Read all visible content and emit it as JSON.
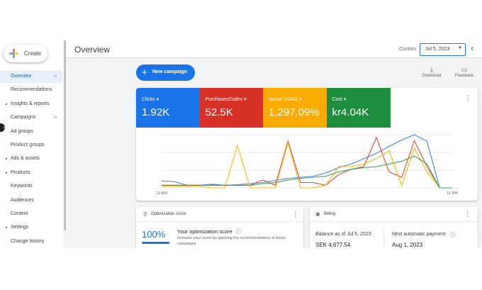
{
  "sidebar": {
    "create": "Create",
    "nav": [
      "Overview",
      "Recommendations",
      "Insights & reports",
      "Campaigns",
      "Ad groups",
      "Product groups",
      "Ads & assets",
      "Products",
      "Keywords",
      "Audiences",
      "Content",
      "Settings",
      "Change history"
    ]
  },
  "header": {
    "title": "Overview",
    "custom": "Custom",
    "date": "Jul 5, 2023"
  },
  "actions": {
    "new_campaign": "New campaign",
    "download": "Download",
    "feedback": "Feedback"
  },
  "metrics": [
    {
      "label": "Clicks",
      "value": "1.92K"
    },
    {
      "label": "Purchases/Sales",
      "value": "52.5K"
    },
    {
      "label": "Actual ROAS",
      "value": "1,297.09%"
    },
    {
      "label": "Cost",
      "value": "kr4.04K"
    }
  ],
  "chart_data": {
    "type": "line",
    "categories": [
      "12 AM",
      null,
      null,
      null,
      null,
      null,
      null,
      null,
      null,
      null,
      null,
      null,
      null,
      null,
      null,
      null,
      null,
      null,
      null,
      null,
      null,
      null,
      null,
      "11 PM"
    ],
    "series": [
      {
        "name": "Clicks",
        "color": "#4285f4",
        "values": [
          13,
          12,
          5,
          5,
          7,
          5,
          6,
          8,
          10,
          14,
          18,
          20,
          22,
          28,
          38,
          45,
          55,
          65,
          78,
          90,
          100,
          88,
          0,
          0
        ]
      },
      {
        "name": "Purchases/Sales",
        "color": "#ea4335",
        "values": [
          5,
          5,
          5,
          5,
          5,
          5,
          5,
          5,
          15,
          5,
          88,
          10,
          10,
          5,
          25,
          35,
          40,
          95,
          30,
          20,
          89,
          40,
          0,
          0
        ]
      },
      {
        "name": "Actual ROAS",
        "color": "#fbbc04",
        "values": [
          3,
          3,
          3,
          3,
          0,
          0,
          80,
          0,
          0,
          0,
          85,
          0,
          0,
          5,
          40,
          40,
          45,
          55,
          70,
          5,
          75,
          30,
          0,
          0
        ]
      },
      {
        "name": "Cost",
        "color": "#34a853",
        "values": [
          5,
          5,
          5,
          5,
          5,
          5,
          5,
          5,
          8,
          10,
          15,
          18,
          20,
          22,
          30,
          35,
          38,
          40,
          45,
          50,
          60,
          45,
          0,
          0
        ]
      }
    ],
    "ylim": [
      0,
      100
    ],
    "yticks": [
      0,
      33.3,
      66.7,
      100
    ],
    "grid": true
  },
  "optimization": {
    "title": "Optimization score",
    "score": "100%",
    "heading": "Your optimization score",
    "text": "Increase your score by applying the recommendations in these campaigns"
  },
  "billing": {
    "title": "Billing",
    "balance_label": "Balance as of Jul 5, 2023",
    "balance": "SEK 4,677.54",
    "next_label": "Next automatic payment",
    "next_date": "Aug 1, 2023"
  }
}
